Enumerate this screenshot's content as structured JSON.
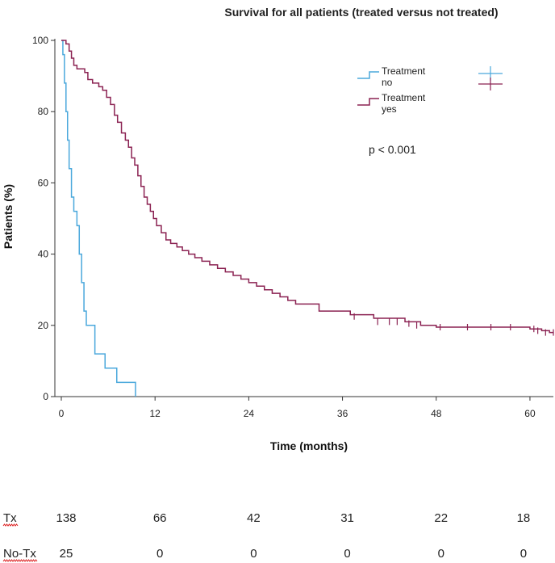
{
  "chart_data": {
    "type": "line",
    "title": "Survival for all patients (treated versus not treated)",
    "xlabel": "Time (months)",
    "ylabel": "Patients (%)",
    "xlim": [
      0,
      63
    ],
    "ylim": [
      0,
      100
    ],
    "x_ticks": [
      0,
      12,
      24,
      36,
      48,
      60
    ],
    "y_ticks": [
      0,
      20,
      40,
      60,
      80,
      100
    ],
    "annotation": "p < 0.001",
    "legend": {
      "position": "top-right",
      "entries": [
        {
          "line1": "Treatment",
          "line2": "no",
          "color": "#4aa8dc"
        },
        {
          "line1": "Treatment",
          "line2": "yes",
          "color": "#8b2252"
        }
      ]
    },
    "series": [
      {
        "name": "Treatment no",
        "color": "#4aa8dc",
        "x": [
          0,
          0.2,
          0.4,
          0.6,
          0.8,
          1.0,
          1.3,
          1.6,
          2.0,
          2.3,
          2.6,
          2.9,
          3.2,
          4.3,
          5.6,
          7.1,
          9.5
        ],
        "y": [
          100,
          96,
          88,
          80,
          72,
          64,
          56,
          52,
          48,
          40,
          32,
          24,
          20,
          12,
          8,
          4,
          0
        ],
        "censored_x": [],
        "censored_y": []
      },
      {
        "name": "Treatment yes",
        "color": "#8b2252",
        "x": [
          0,
          0.6,
          1.0,
          1.3,
          1.6,
          2.0,
          3.0,
          3.4,
          4.0,
          4.8,
          5.3,
          5.8,
          6.3,
          6.8,
          7.2,
          7.7,
          8.2,
          8.6,
          9.0,
          9.4,
          9.8,
          10.2,
          10.6,
          11.0,
          11.4,
          11.8,
          12.2,
          12.8,
          13.4,
          14.0,
          14.8,
          15.5,
          16.3,
          17.1,
          18.0,
          19.0,
          20.0,
          21.0,
          22.0,
          23.0,
          24.0,
          25.0,
          26.0,
          27.0,
          28.0,
          29.0,
          30.0,
          33.0,
          37.0,
          40.0,
          44.0,
          46.0,
          48.0,
          60.0,
          61.5,
          62.5
        ],
        "y": [
          100,
          99,
          97,
          95,
          93,
          92,
          91,
          89,
          88,
          87,
          86,
          84,
          82,
          79,
          77,
          74,
          72,
          70,
          67,
          65,
          62,
          59,
          56,
          54,
          52,
          50,
          48,
          46,
          44,
          43,
          42,
          41,
          40,
          39,
          38,
          37,
          36,
          35,
          34,
          33,
          32,
          31,
          30,
          29,
          28,
          27,
          26,
          24,
          23,
          22,
          21,
          20,
          19.5,
          19,
          18.5,
          18
        ],
        "censored_x": [
          37.5,
          40.5,
          42.0,
          43.0,
          44.5,
          45.5,
          48.5,
          52.0,
          55.0,
          57.5,
          60.5,
          61.0,
          62.0,
          63.0
        ],
        "censored_y": [
          22.5,
          21.0,
          21.0,
          21.0,
          20.5,
          20.0,
          19.5,
          19.5,
          19.5,
          19.5,
          19.0,
          18.5,
          18.0,
          18.0
        ]
      }
    ]
  },
  "risk_table": {
    "rows": [
      {
        "label": "Tx",
        "values": [
          "138",
          "66",
          "42",
          "31",
          "22",
          "18"
        ]
      },
      {
        "label": "No-Tx",
        "values": [
          "25",
          "0",
          "0",
          "0",
          "0",
          "0"
        ]
      }
    ]
  }
}
